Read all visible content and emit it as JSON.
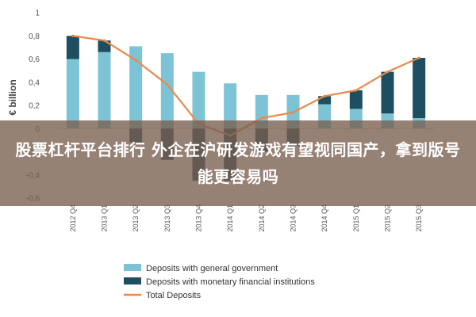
{
  "overlay": {
    "headline": "股票杠杆平台排行 外企在沪研发游戏有望视同国产，拿到版号能更容易吗"
  },
  "chart_data": {
    "type": "bar",
    "ylabel": "€ billion",
    "ylim": [
      -0.6,
      1
    ],
    "yticks": [
      -0.6,
      -0.4,
      -0.2,
      0,
      0.2,
      0.4,
      0.6,
      0.8,
      1
    ],
    "ytick_labels": [
      "-0,6",
      "-0,4",
      "-0,2",
      "0",
      "0,2",
      "0,4",
      "0,6",
      "0,8",
      "1"
    ],
    "categories": [
      "2012 Q4",
      "2013 Q1",
      "2013 Q2",
      "2013 Q3",
      "2013 Q4",
      "2014 Q1",
      "2014 Q2",
      "2014 Q3",
      "2014 Q4",
      "2015 Q1",
      "2015 Q2",
      "2015 Q3"
    ],
    "series": [
      {
        "name": "Deposits with general government",
        "color": "#7cc3d6",
        "kind": "bar",
        "values": [
          0.6,
          0.66,
          0.71,
          0.65,
          0.49,
          0.39,
          0.29,
          0.29,
          0.21,
          0.17,
          0.13,
          0.09
        ]
      },
      {
        "name": "Deposits with monetary financial institutions",
        "color": "#1e4f60",
        "kind": "bar",
        "values": [
          0.2,
          0.1,
          -0.12,
          -0.27,
          -0.45,
          -0.45,
          -0.2,
          -0.15,
          0.07,
          0.16,
          0.36,
          0.52
        ]
      },
      {
        "name": "Total Deposits",
        "color": "#e8894a",
        "kind": "line",
        "values": [
          0.8,
          0.76,
          0.59,
          0.38,
          0.04,
          -0.06,
          0.09,
          0.14,
          0.28,
          0.33,
          0.49,
          0.61
        ]
      }
    ],
    "grid": false,
    "legend_position": "bottom"
  }
}
